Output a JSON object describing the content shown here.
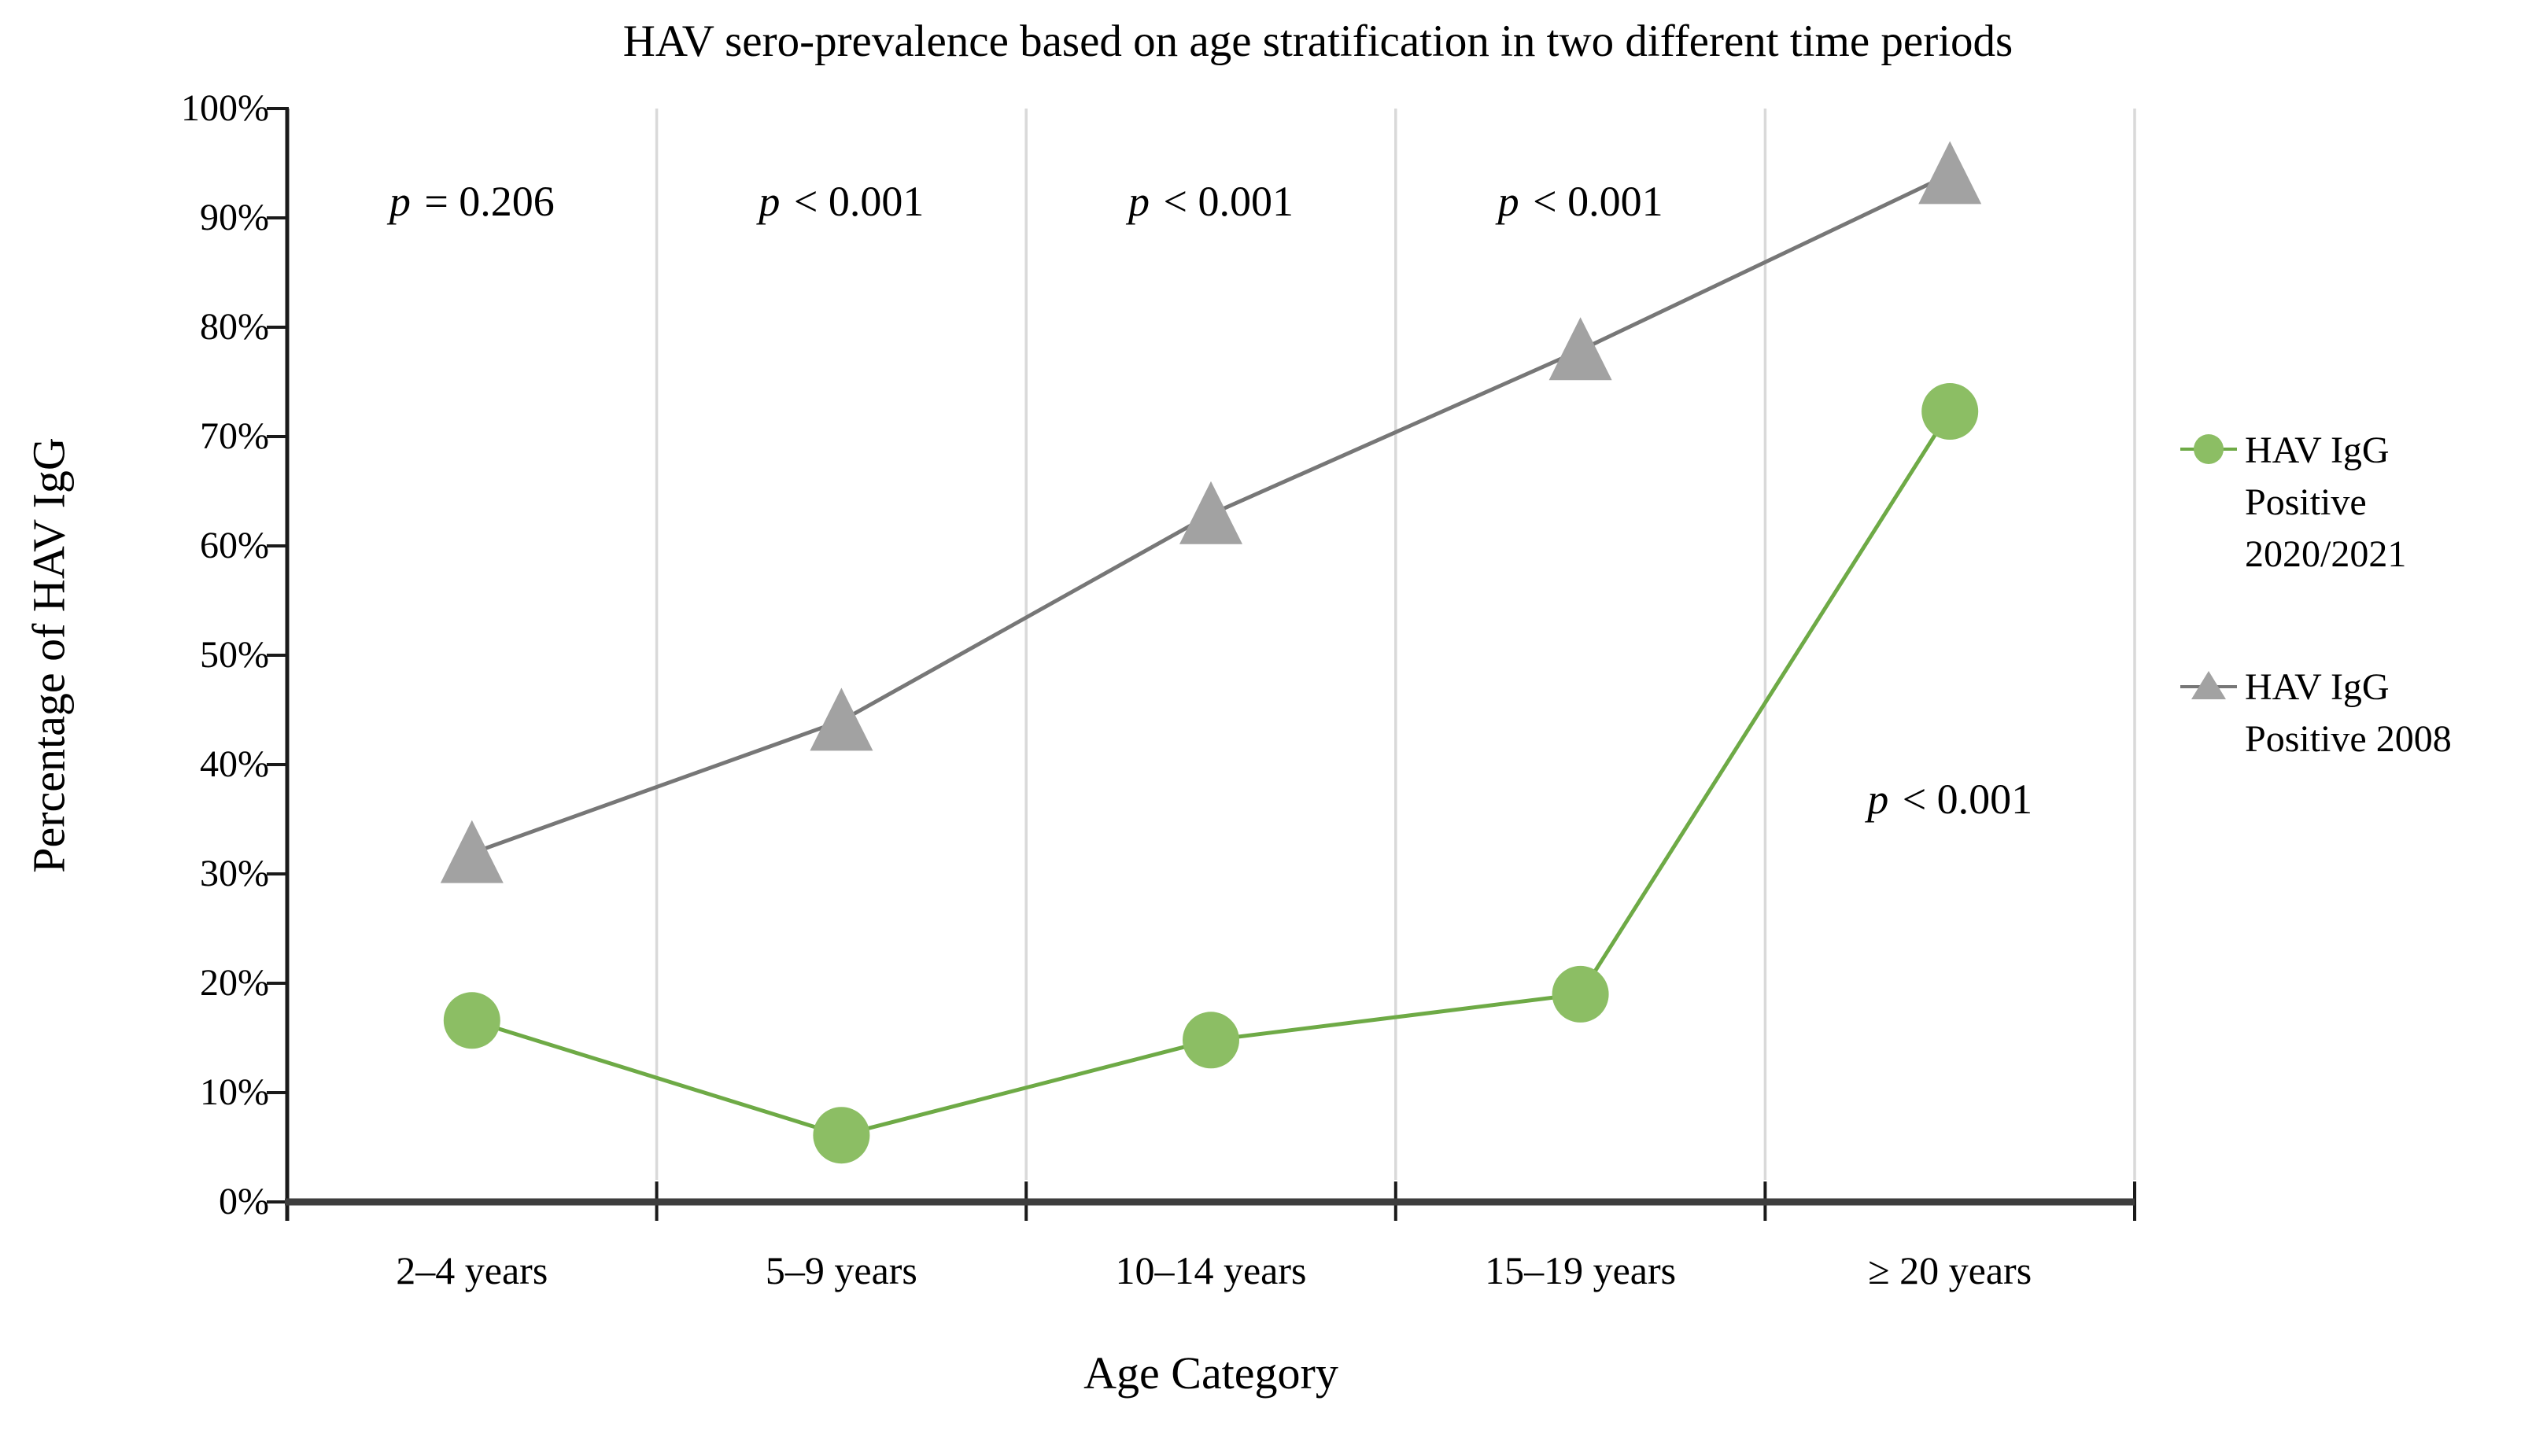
{
  "chart_data": {
    "type": "line",
    "title": "HAV sero-prevalence based on age stratification in two different time periods",
    "xlabel": "Age Category",
    "ylabel": "Percentage of HAV IgG",
    "categories": [
      "2–4 years",
      "5–9 years",
      "10–14 years",
      "15–19 years",
      "≥ 20 years"
    ],
    "y_ticks": [
      "0%",
      "10%",
      "20%",
      "30%",
      "40%",
      "50%",
      "60%",
      "70%",
      "80%",
      "90%",
      "100%"
    ],
    "ylim": [
      0,
      100
    ],
    "grid": "vertical category-boundary gridlines only",
    "legend_position": "right-middle",
    "series": [
      {
        "name": "HAV IgG Positive 2020/2021",
        "legend_lines": [
          "HAV IgG",
          "Positive",
          "2020/2021"
        ],
        "marker": "circle",
        "line_color": "#6EAA46",
        "marker_color": "#8CBE64",
        "values": [
          16.6,
          6.1,
          14.8,
          19.0,
          72.3
        ]
      },
      {
        "name": "HAV IgG Positive 2008",
        "legend_lines": [
          "HAV IgG",
          "Positive 2008"
        ],
        "marker": "triangle",
        "line_color": "#777777",
        "marker_color": "#A2A2A2",
        "values": [
          31.9,
          44.0,
          62.9,
          77.9,
          94.0
        ]
      }
    ],
    "annotations": [
      {
        "text": "p = 0.206",
        "category_index": 0,
        "y_percent": 91.5
      },
      {
        "text": "p < 0.001",
        "category_index": 1,
        "y_percent": 91.5
      },
      {
        "text": "p < 0.001",
        "category_index": 2,
        "y_percent": 91.5
      },
      {
        "text": "p < 0.001",
        "category_index": 3,
        "y_percent": 91.5
      },
      {
        "text": "p < 0.001",
        "category_index": 4,
        "y_percent": 36.8
      }
    ],
    "axis_colors": {
      "x_axis": "#3D3D3D",
      "y_axis": "#1A1A1A",
      "tick": "#1A1A1A",
      "gridline": "#D9D9D9"
    }
  }
}
